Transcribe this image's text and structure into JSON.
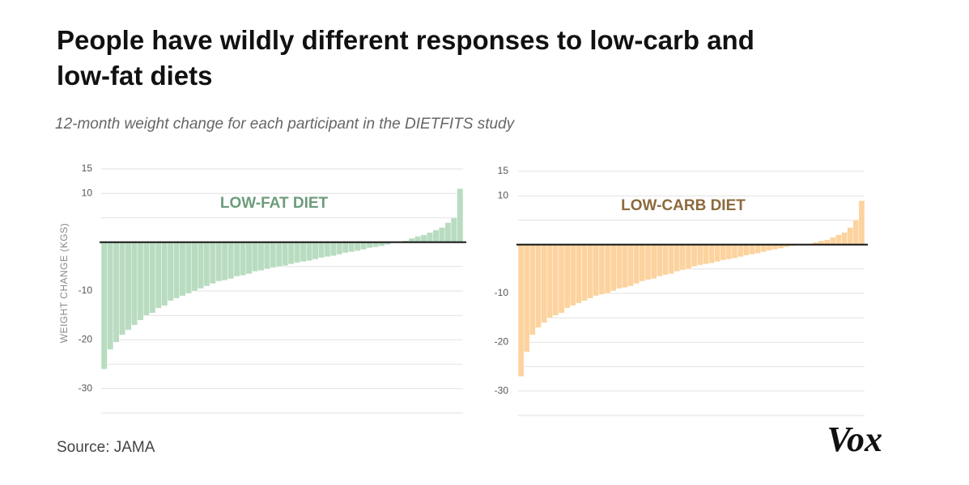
{
  "title": "People have wildly different responses to low-carb and low-fat diets",
  "subtitle": "12-month weight change for each participant in the DIETFITS study",
  "source": "Source: JAMA",
  "logo": "Vox",
  "chart_data": [
    {
      "type": "bar",
      "title": "LOW-FAT DIET",
      "y_label": "WEIGHT CHANGE (KGS)",
      "color": "#b9dcc1",
      "title_color": "#6d9c7b",
      "values": [
        -26,
        -22,
        -20.5,
        -19,
        -18,
        -17,
        -16,
        -15,
        -14.5,
        -13.5,
        -13,
        -12,
        -11.5,
        -11,
        -10.5,
        -10,
        -9.5,
        -9,
        -8.5,
        -8,
        -7.8,
        -7.5,
        -7,
        -6.8,
        -6.5,
        -6,
        -5.8,
        -5.5,
        -5.2,
        -5,
        -4.8,
        -4.5,
        -4.2,
        -4,
        -3.8,
        -3.5,
        -3.2,
        -3,
        -2.8,
        -2.5,
        -2.2,
        -2,
        -1.8,
        -1.5,
        -1.2,
        -1,
        -0.8,
        -0.5,
        -0.2,
        0,
        0.3,
        0.8,
        1.2,
        1.5,
        2,
        2.5,
        3,
        4,
        5,
        11
      ],
      "ylim": [
        -35,
        15
      ],
      "yticks": [
        15,
        10,
        -10,
        -20,
        -30
      ],
      "grid": [
        15,
        10,
        5,
        0,
        -5,
        -10,
        -15,
        -20,
        -25,
        -30,
        -35
      ]
    },
    {
      "type": "bar",
      "title": "LOW-CARB DIET",
      "color": "#fcd39e",
      "title_color": "#8c6a3c",
      "values": [
        -27,
        -22,
        -18.5,
        -17,
        -16,
        -15,
        -14.5,
        -14,
        -13,
        -12.5,
        -12,
        -11.5,
        -11,
        -10.5,
        -10.2,
        -10,
        -9.5,
        -9,
        -8.8,
        -8.5,
        -8,
        -7.5,
        -7.2,
        -7,
        -6.5,
        -6.2,
        -6,
        -5.5,
        -5.2,
        -5,
        -4.5,
        -4.2,
        -4,
        -3.8,
        -3.5,
        -3.2,
        -3,
        -2.8,
        -2.5,
        -2.2,
        -2,
        -1.8,
        -1.5,
        -1.2,
        -1,
        -0.8,
        -0.5,
        -0.3,
        0,
        0,
        0.2,
        0.5,
        0.8,
        1,
        1.5,
        2,
        2.5,
        3.5,
        5,
        9
      ],
      "ylim": [
        -35,
        15
      ],
      "yticks": [
        15,
        10,
        -10,
        -20,
        -30
      ],
      "grid": [
        15,
        10,
        5,
        0,
        -5,
        -10,
        -15,
        -20,
        -25,
        -30,
        -35
      ]
    }
  ]
}
